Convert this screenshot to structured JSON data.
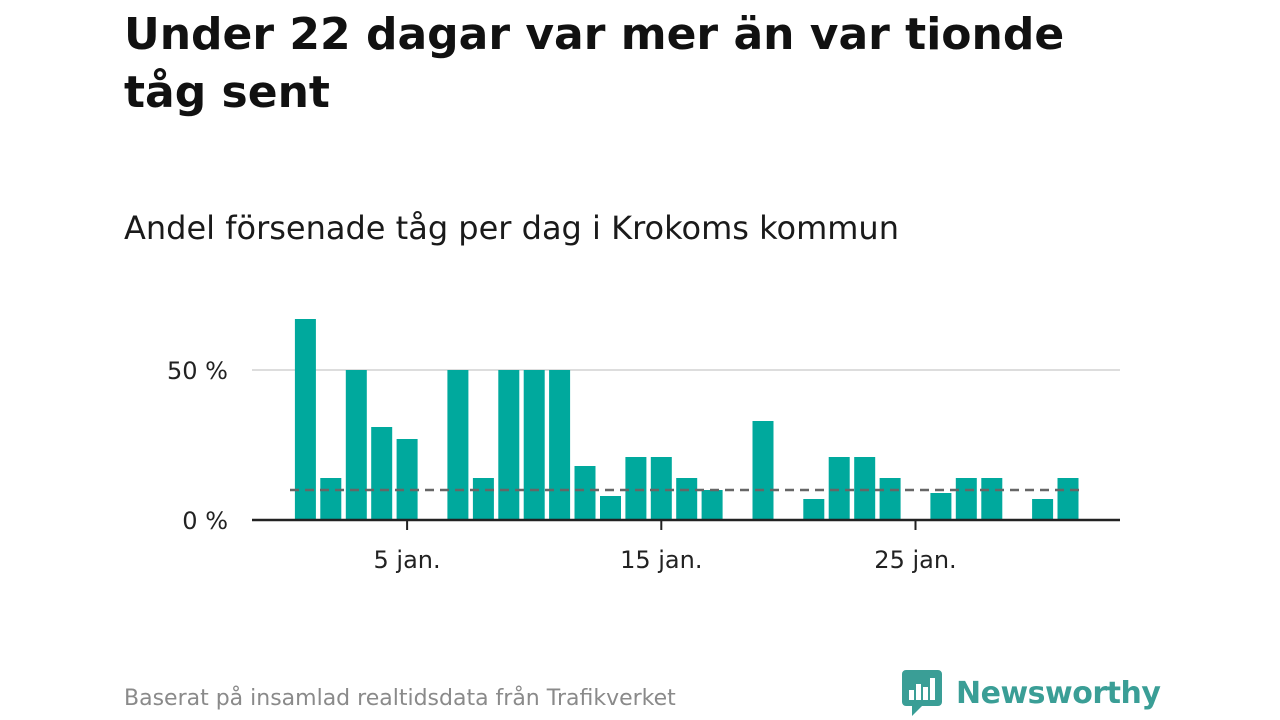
{
  "headline": "Under 22 dagar var mer än var tionde tåg sent",
  "subtitle": "Andel försenade tåg per dag i Krokoms kommun",
  "footer": {
    "note": "Baserat på insamlad realtidsdata från Trafikverket",
    "brand": "Newsworthy",
    "brand_icon": "newsworthy-logo-icon"
  },
  "colors": {
    "bar": "#00a99d",
    "reference_line": "#666666",
    "grid": "#dddddd",
    "axis": "#222222",
    "brand": "#3a9e96"
  },
  "chart_data": {
    "type": "bar",
    "title": "Andel försenade tåg per dag i Krokoms kommun",
    "xlabel": "",
    "ylabel": "",
    "x": [
      1,
      2,
      3,
      4,
      5,
      6,
      7,
      8,
      9,
      10,
      11,
      12,
      13,
      14,
      15,
      16,
      17,
      18,
      19,
      20,
      21,
      22,
      23,
      24,
      25,
      26,
      27,
      28,
      29,
      30,
      31
    ],
    "values": [
      67,
      14,
      50,
      31,
      27,
      null,
      50,
      14,
      50,
      50,
      50,
      18,
      8,
      21,
      21,
      14,
      10,
      null,
      33,
      null,
      7,
      21,
      21,
      14,
      null,
      9,
      14,
      14,
      null,
      7,
      14
    ],
    "reference_line": 10,
    "ylim": [
      0,
      70
    ],
    "xlim": [
      0,
      32
    ],
    "yticks": [
      {
        "value": 0,
        "label": "0 %"
      },
      {
        "value": 50,
        "label": "50 %"
      }
    ],
    "xticks": [
      {
        "value": 5,
        "label": "5 jan."
      },
      {
        "value": 15,
        "label": "15 jan."
      },
      {
        "value": 25,
        "label": "25 jan."
      }
    ],
    "grid": true,
    "legend": "none"
  }
}
